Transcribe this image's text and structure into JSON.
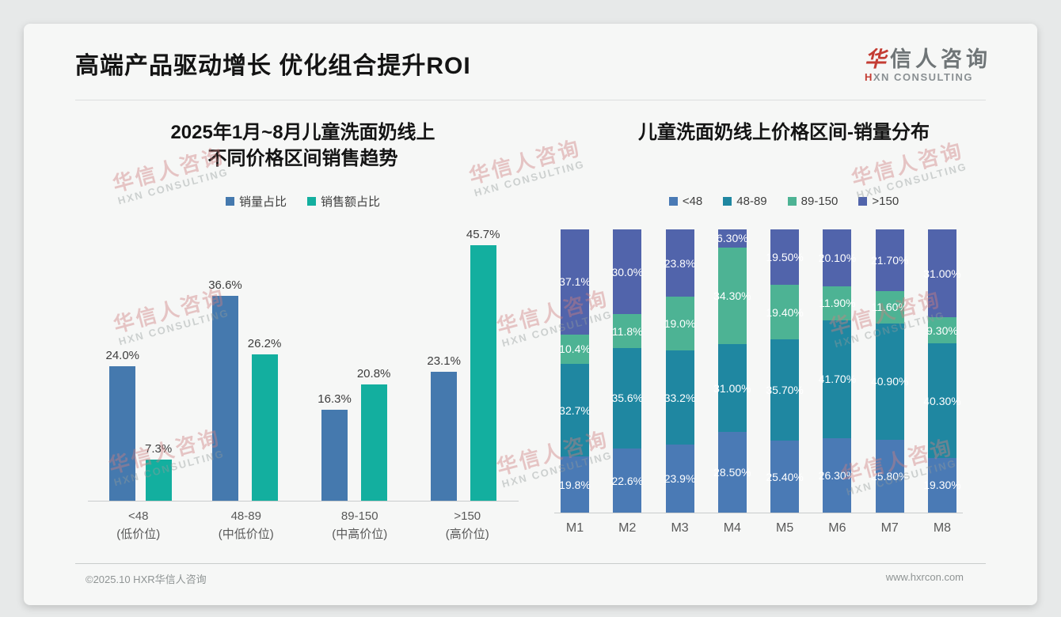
{
  "header": {
    "title": "高端产品驱动增长 优化组合提升ROI",
    "logo": {
      "cn_accent": "华",
      "cn_rest": "信人咨询",
      "en_accent": "H",
      "en_rest": "XN CONSULTING"
    }
  },
  "watermark": {
    "cn": "华信人咨询",
    "en": "HXN CONSULTING"
  },
  "footer": {
    "left": "©2025.10 HXR华信人咨询",
    "right": "www.hxrcon.com"
  },
  "colors": {
    "page_bg": "#e7e9e9",
    "card_bg": "#f6f7f6",
    "left_blue": "#4579ae",
    "left_teal": "#13af9f",
    "stack_blue": "#4a7ab5",
    "stack_teal": "#1f87a1",
    "stack_green": "#4db394",
    "stack_indigo": "#5164ab",
    "logo_red": "#c43c33"
  },
  "chart_data": [
    {
      "type": "bar",
      "stacked": false,
      "title_line1": "2025年1月~8月儿童洗面奶线上",
      "title_line2": "不同价格区间销售趋势",
      "categories": [
        "<48",
        "48-89",
        "89-150",
        ">150"
      ],
      "category_sublabels": [
        "(低价位)",
        "(中低价位)",
        "(中高价位)",
        "(高价位)"
      ],
      "series": [
        {
          "name": "销量占比",
          "color": "#4579ae",
          "values": [
            24.0,
            36.6,
            16.3,
            23.1
          ],
          "labels": [
            "24.0%",
            "36.6%",
            "16.3%",
            "23.1%"
          ]
        },
        {
          "name": "销售额占比",
          "color": "#13af9f",
          "values": [
            7.3,
            26.2,
            20.8,
            45.7
          ],
          "labels": [
            "7.3%",
            "26.2%",
            "20.8%",
            "45.7%"
          ]
        }
      ],
      "xlabel": "",
      "ylabel": "",
      "ylim": [
        0,
        47.8
      ],
      "grid": false,
      "legend_position": "top",
      "unit": "%"
    },
    {
      "type": "bar",
      "stacked": true,
      "title": "儿童洗面奶线上价格区间-销量分布",
      "categories": [
        "M1",
        "M2",
        "M3",
        "M4",
        "M5",
        "M6",
        "M7",
        "M8"
      ],
      "series": [
        {
          "name": "<48",
          "color": "#4a7ab5",
          "values": [
            19.8,
            22.6,
            23.9,
            28.5,
            25.4,
            26.3,
            25.8,
            19.3
          ],
          "labels": [
            "19.8%",
            "22.6%",
            "23.9%",
            "28.50%",
            "25.40%",
            "26.30%",
            "25.80%",
            "19.30%"
          ]
        },
        {
          "name": "48-89",
          "color": "#1f87a1",
          "values": [
            32.7,
            35.6,
            33.2,
            31.0,
            35.7,
            41.7,
            40.9,
            40.3
          ],
          "labels": [
            "32.7%",
            "35.6%",
            "33.2%",
            "31.00%",
            "35.70%",
            "41.70%",
            "40.90%",
            "40.30%"
          ]
        },
        {
          "name": "89-150",
          "color": "#4db394",
          "values": [
            10.4,
            11.8,
            19.0,
            34.3,
            19.4,
            11.9,
            11.6,
            9.3
          ],
          "labels": [
            "10.4%",
            "11.8%",
            "19.0%",
            "34.30%",
            "19.40%",
            "11.90%",
            "11.60%",
            "9.30%"
          ]
        },
        {
          "name": ">150",
          "color": "#5164ab",
          "values": [
            37.1,
            30.0,
            23.8,
            6.3,
            19.5,
            20.1,
            21.7,
            31.0
          ],
          "labels": [
            "37.1%",
            "30.0%",
            "23.8%",
            "6.30%",
            "19.50%",
            "20.10%",
            "21.70%",
            "31.00%"
          ]
        }
      ],
      "xlabel": "",
      "ylabel": "",
      "ylim": [
        0,
        100
      ],
      "grid": false,
      "legend_position": "top",
      "unit": "%"
    }
  ]
}
